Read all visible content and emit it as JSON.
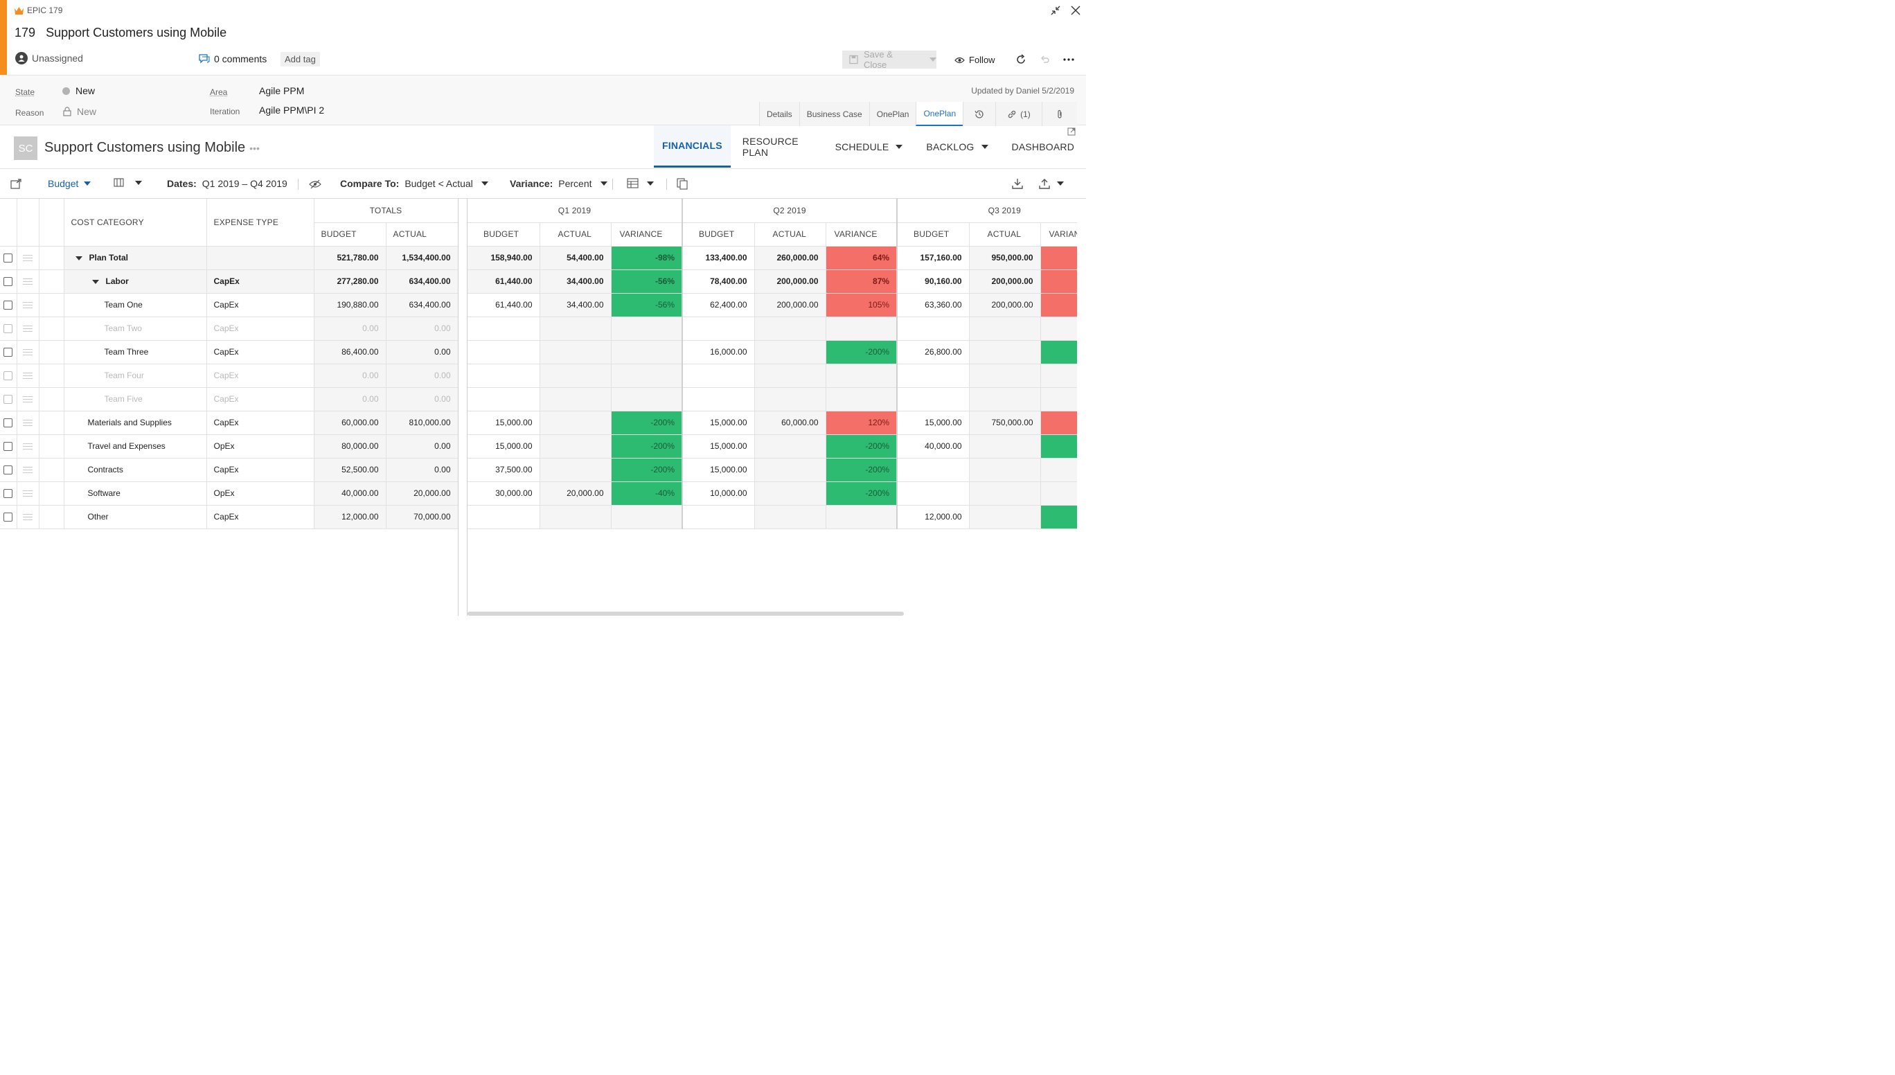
{
  "header": {
    "epic_label": "EPIC 179",
    "id": "179",
    "title": "Support Customers using Mobile",
    "assigned": "Unassigned",
    "comments": "0 comments",
    "add_tag": "Add tag",
    "save_close": "Save & Close",
    "follow": "Follow"
  },
  "fields": {
    "state_label": "State",
    "state_value": "New",
    "reason_label": "Reason",
    "reason_value": "New",
    "area_label": "Area",
    "area_value": "Agile PPM",
    "iteration_label": "Iteration",
    "iteration_value": "Agile PPM\\PI 2",
    "updated": "Updated by Daniel 5/2/2019"
  },
  "form_tabs": [
    "Details",
    "Business Case",
    "OnePlan",
    "OnePlan",
    "(1)"
  ],
  "plan": {
    "tile": "SC",
    "title": "Support Customers using Mobile",
    "nav": [
      "FINANCIALS",
      "RESOURCE PLAN",
      "SCHEDULE",
      "BACKLOG",
      "DASHBOARD"
    ]
  },
  "toolbar": {
    "budget": "Budget",
    "dates_label": "Dates:",
    "dates_value": "Q1 2019 – Q4 2019",
    "compare_label": "Compare To:",
    "compare_value": "Budget < Actual",
    "variance_label": "Variance:",
    "variance_value": "Percent"
  },
  "grid": {
    "col_cost_category": "COST CATEGORY",
    "col_expense_type": "EXPENSE TYPE",
    "totals": "TOTALS",
    "budget": "BUDGET",
    "actual": "ACTUAL",
    "variance": "VARIANCE",
    "variance_cut": "VARIAN",
    "quarters": [
      "Q1 2019",
      "Q2 2019",
      "Q3 2019"
    ],
    "rows": [
      {
        "name": "Plan Total",
        "type": "",
        "tb": "521,780.00",
        "ta": "1,534,400.00",
        "q1b": "158,940.00",
        "q1a": "54,400.00",
        "q1v": "-98%",
        "q2b": "133,400.00",
        "q2a": "260,000.00",
        "q2v": "64%",
        "q3b": "157,160.00",
        "q3a": "950,000.00"
      },
      {
        "name": "Labor",
        "type": "CapEx",
        "tb": "277,280.00",
        "ta": "634,400.00",
        "q1b": "61,440.00",
        "q1a": "34,400.00",
        "q1v": "-56%",
        "q2b": "78,400.00",
        "q2a": "200,000.00",
        "q2v": "87%",
        "q3b": "90,160.00",
        "q3a": "200,000.00"
      },
      {
        "name": "Team One",
        "type": "CapEx",
        "tb": "190,880.00",
        "ta": "634,400.00",
        "q1b": "61,440.00",
        "q1a": "34,400.00",
        "q1v": "-56%",
        "q2b": "62,400.00",
        "q2a": "200,000.00",
        "q2v": "105%",
        "q3b": "63,360.00",
        "q3a": "200,000.00"
      },
      {
        "name": "Team Two",
        "type": "CapEx",
        "tb": "0.00",
        "ta": "0.00",
        "q1b": "",
        "q1a": "",
        "q1v": "",
        "q2b": "",
        "q2a": "",
        "q2v": "",
        "q3b": "",
        "q3a": ""
      },
      {
        "name": "Team Three",
        "type": "CapEx",
        "tb": "86,400.00",
        "ta": "0.00",
        "q1b": "",
        "q1a": "",
        "q1v": "",
        "q2b": "16,000.00",
        "q2a": "",
        "q2v": "-200%",
        "q3b": "26,800.00",
        "q3a": ""
      },
      {
        "name": "Team Four",
        "type": "CapEx",
        "tb": "0.00",
        "ta": "0.00",
        "q1b": "",
        "q1a": "",
        "q1v": "",
        "q2b": "",
        "q2a": "",
        "q2v": "",
        "q3b": "",
        "q3a": ""
      },
      {
        "name": "Team Five",
        "type": "CapEx",
        "tb": "0.00",
        "ta": "0.00",
        "q1b": "",
        "q1a": "",
        "q1v": "",
        "q2b": "",
        "q2a": "",
        "q2v": "",
        "q3b": "",
        "q3a": ""
      },
      {
        "name": "Materials and Supplies",
        "type": "CapEx",
        "tb": "60,000.00",
        "ta": "810,000.00",
        "q1b": "15,000.00",
        "q1a": "",
        "q1v": "-200%",
        "q2b": "15,000.00",
        "q2a": "60,000.00",
        "q2v": "120%",
        "q3b": "15,000.00",
        "q3a": "750,000.00"
      },
      {
        "name": "Travel and Expenses",
        "type": "OpEx",
        "tb": "80,000.00",
        "ta": "0.00",
        "q1b": "15,000.00",
        "q1a": "",
        "q1v": "-200%",
        "q2b": "15,000.00",
        "q2a": "",
        "q2v": "-200%",
        "q3b": "40,000.00",
        "q3a": ""
      },
      {
        "name": "Contracts",
        "type": "CapEx",
        "tb": "52,500.00",
        "ta": "0.00",
        "q1b": "37,500.00",
        "q1a": "",
        "q1v": "-200%",
        "q2b": "15,000.00",
        "q2a": "",
        "q2v": "-200%",
        "q3b": "",
        "q3a": ""
      },
      {
        "name": "Software",
        "type": "OpEx",
        "tb": "40,000.00",
        "ta": "20,000.00",
        "q1b": "30,000.00",
        "q1a": "20,000.00",
        "q1v": "-40%",
        "q2b": "10,000.00",
        "q2a": "",
        "q2v": "-200%",
        "q3b": "",
        "q3a": ""
      },
      {
        "name": "Other",
        "type": "CapEx",
        "tb": "12,000.00",
        "ta": "70,000.00",
        "q1b": "",
        "q1a": "",
        "q1v": "",
        "q2b": "",
        "q2a": "",
        "q2v": "",
        "q3b": "12,000.00",
        "q3a": ""
      }
    ]
  },
  "colors": {
    "accent": "#f58d1f",
    "link": "#1a73c7",
    "positive": "#2dbb72",
    "negative": "#f56f69"
  }
}
